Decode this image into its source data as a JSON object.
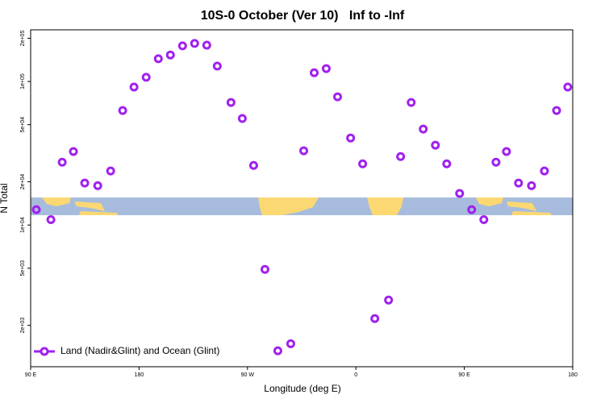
{
  "chart_data": {
    "type": "scatter",
    "title": "10S-0 October (Ver 10)   Inf to -Inf",
    "x_label": "Longitude (deg E)",
    "y_label": "N Total",
    "yscale": "log",
    "xlim": [
      90,
      540
    ],
    "ylim": [
      1030,
      229000
    ],
    "xticks": [
      {
        "value": 90,
        "label": "90 E"
      },
      180,
      {
        "value": 270,
        "label": "90 W"
      },
      {
        "value": 360,
        "label": "0"
      },
      {
        "value": 450,
        "label": "90 E"
      },
      {
        "value": 540,
        "label": "180"
      }
    ],
    "yticks": [
      {
        "value": 2000,
        "label": "2e+03"
      },
      {
        "value": 5000,
        "label": "5e+03"
      },
      {
        "value": 10000,
        "label": "1e+04"
      },
      {
        "value": 20000,
        "label": "2e+04"
      },
      {
        "value": 50000,
        "label": "5e+04"
      },
      {
        "value": 100000,
        "label": "1e+05"
      },
      {
        "value": 200000,
        "label": "2e+05"
      }
    ],
    "legend": "bottom-left",
    "series": [
      {
        "name": "Land (Nadir&Glint) and Ocean (Glint)",
        "color": "#a020f0",
        "x": [
          94.7,
          106.8,
          116.2,
          125.5,
          134.9,
          145.7,
          156.4,
          166.4,
          175.8,
          185.9,
          196,
          206,
          216.1,
          226.1,
          236.2,
          244.9,
          256.3,
          265.7,
          275.1,
          284.5,
          295.2,
          305.9,
          316.7,
          325.4,
          335.4,
          344.8,
          355.6,
          365.6,
          375.7,
          387.1,
          397.1,
          405.9,
          415.9,
          426,
          435.4,
          446.1,
          456.1,
          466.2,
          476.3,
          485,
          495,
          505.8,
          516.5,
          526.6,
          535.9
        ],
        "values": [
          12800,
          10900,
          27400,
          32500,
          19600,
          18800,
          23800,
          62800,
          91400,
          107000,
          144000,
          153000,
          177000,
          184000,
          179000,
          128000,
          71400,
          55200,
          26000,
          4910,
          1330,
          1490,
          32900,
          115000,
          123000,
          78200,
          40400,
          26700,
          2230,
          3000,
          30000,
          71400,
          46600,
          36000,
          26700,
          16600,
          12800,
          10900,
          27400,
          32500,
          19600,
          18800,
          23800,
          62800,
          91400
        ]
      }
    ]
  }
}
